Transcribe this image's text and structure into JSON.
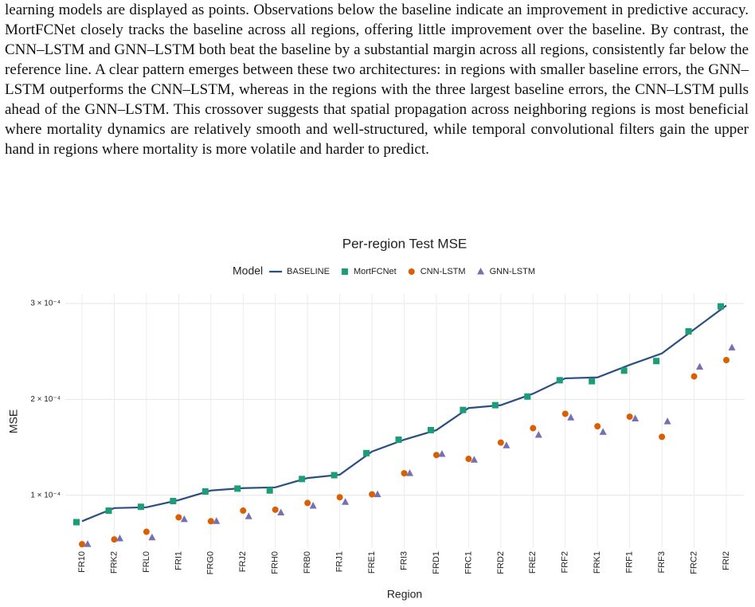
{
  "paragraph": "learning models are displayed as points. Observations below the baseline indicate an improvement in predictive accuracy. MortFCNet closely tracks the baseline across all regions, offering little improvement over the baseline. By contrast, the CNN–LSTM and GNN–LSTM both beat the baseline by a substantial margin across all regions, consistently far below the reference line. A clear pattern emerges between these two architectures: in regions with smaller baseline errors, the GNN–LSTM outperforms the CNN–LSTM, whereas in the regions with the three largest baseline errors, the CNN–LSTM pulls ahead of the GNN–LSTM. This crossover suggests that spatial propagation across neighboring regions is most beneficial where mortality dynamics are relatively smooth and well-structured, while temporal convolutional filters gain the upper hand in regions where mortality is more volatile and harder to predict.",
  "chart_data": {
    "type": "line",
    "title": "Per-region Test MSE",
    "x_label": "Region",
    "y_label": "MSE",
    "legend_title": "Model",
    "legend_position": "top",
    "grid": true,
    "categories": [
      "FR10",
      "FRK2",
      "FRL0",
      "FRI1",
      "FRG0",
      "FRJ2",
      "FRH0",
      "FRB0",
      "FRJ1",
      "FRE1",
      "FRI3",
      "FRD1",
      "FRC1",
      "FRD2",
      "FRE2",
      "FRF2",
      "FRK1",
      "FRF1",
      "FRF3",
      "FRC2",
      "FRI2"
    ],
    "ylim": [
      4.5e-05,
      0.00031
    ],
    "yticks": [
      {
        "value": 0.0001,
        "label": "1 × 10⁻⁴"
      },
      {
        "value": 0.0002,
        "label": "2 × 10⁻⁴"
      },
      {
        "value": 0.0003,
        "label": "3 × 10⁻⁴"
      }
    ],
    "series": [
      {
        "name": "BASELINE",
        "color": "#2b4f82",
        "marker": "line",
        "values": [
          7.3e-05,
          8.67e-05,
          8.75e-05,
          9.5e-05,
          0.000105,
          0.0001075,
          0.0001083,
          0.000118,
          0.0001215,
          0.0001456,
          0.000158,
          0.000168,
          0.000191,
          0.000194,
          0.000206,
          0.000222,
          0.000223,
          0.000236,
          0.000248,
          0.000273,
          0.000298
        ]
      },
      {
        "name": "MortFCNet",
        "color": "#1b9e77",
        "marker": "square",
        "values": [
          7.2e-05,
          8.4e-05,
          8.8e-05,
          9.4e-05,
          0.000104,
          0.000107,
          0.000105,
          0.000117,
          0.000121,
          0.000144,
          0.000158,
          0.000168,
          0.000189,
          0.000194,
          0.000203,
          0.00022,
          0.000219,
          0.00023,
          0.00024,
          0.000271,
          0.000297
        ]
      },
      {
        "name": "CNN-LSTM",
        "color": "#d95f02",
        "marker": "circle",
        "values": [
          4.9e-05,
          5.4e-05,
          6.2e-05,
          7.7e-05,
          7.3e-05,
          8.4e-05,
          8.5e-05,
          9.2e-05,
          9.8e-05,
          0.000101,
          0.000123,
          0.000142,
          0.000138,
          0.000155,
          0.00017,
          0.000185,
          0.000172,
          0.000182,
          0.000161,
          0.000224,
          0.000241
        ]
      },
      {
        "name": "GNN-LSTM",
        "color": "#7570b3",
        "marker": "triangle",
        "values": [
          4.9e-05,
          5.5e-05,
          5.6e-05,
          7.5e-05,
          7.3e-05,
          7.8e-05,
          8.2e-05,
          8.9e-05,
          9.3e-05,
          0.000101,
          0.000123,
          0.000143,
          0.000137,
          0.000152,
          0.000163,
          0.000181,
          0.000166,
          0.00018,
          0.000177,
          0.000234,
          0.000254
        ]
      }
    ]
  }
}
